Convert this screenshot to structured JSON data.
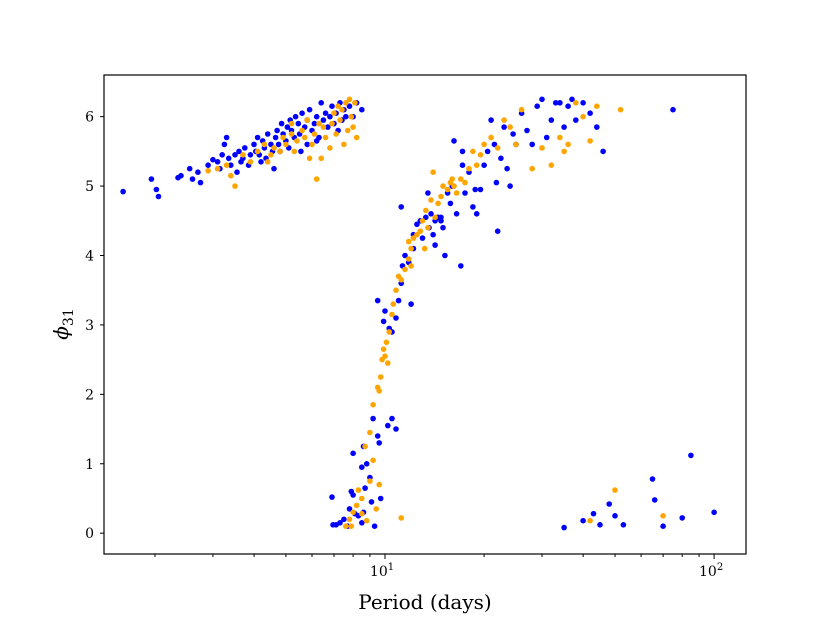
{
  "chart_data": {
    "type": "scatter",
    "xlabel": "Period (days)",
    "ylabel_main": "ϕ",
    "ylabel_sub": "31",
    "xscale": "log",
    "xlim": [
      1.4,
      125
    ],
    "ylim": [
      -0.3,
      6.6
    ],
    "x_ticks": [
      {
        "value": 10,
        "base": "10",
        "exp": "1"
      },
      {
        "value": 100,
        "base": "10",
        "exp": "2"
      }
    ],
    "y_ticks": [
      0,
      1,
      2,
      3,
      4,
      5,
      6
    ],
    "grid": false,
    "series": [
      {
        "color": "#0000ff",
        "points": [
          [
            1.6,
            4.92
          ],
          [
            1.95,
            5.1
          ],
          [
            2.02,
            4.95
          ],
          [
            2.05,
            4.85
          ],
          [
            2.35,
            5.12
          ],
          [
            2.4,
            5.15
          ],
          [
            2.55,
            5.25
          ],
          [
            2.6,
            5.1
          ],
          [
            2.7,
            5.2
          ],
          [
            2.75,
            5.05
          ],
          [
            2.9,
            5.3
          ],
          [
            3.0,
            5.38
          ],
          [
            3.1,
            5.35
          ],
          [
            3.15,
            5.25
          ],
          [
            3.2,
            5.45
          ],
          [
            3.25,
            5.6
          ],
          [
            3.3,
            5.7
          ],
          [
            3.35,
            5.4
          ],
          [
            3.4,
            5.3
          ],
          [
            3.5,
            5.45
          ],
          [
            3.55,
            5.2
          ],
          [
            3.6,
            5.5
          ],
          [
            3.65,
            5.35
          ],
          [
            3.7,
            5.4
          ],
          [
            3.75,
            5.55
          ],
          [
            3.85,
            5.3
          ],
          [
            3.9,
            5.45
          ],
          [
            4.0,
            5.6
          ],
          [
            4.05,
            5.5
          ],
          [
            4.1,
            5.7
          ],
          [
            4.15,
            5.45
          ],
          [
            4.2,
            5.35
          ],
          [
            4.25,
            5.65
          ],
          [
            4.3,
            5.55
          ],
          [
            4.35,
            5.4
          ],
          [
            4.4,
            5.75
          ],
          [
            4.5,
            5.6
          ],
          [
            4.55,
            5.5
          ],
          [
            4.6,
            5.25
          ],
          [
            4.65,
            5.7
          ],
          [
            4.7,
            5.8
          ],
          [
            4.75,
            5.6
          ],
          [
            4.8,
            5.5
          ],
          [
            4.85,
            5.9
          ],
          [
            4.9,
            5.75
          ],
          [
            5.0,
            5.65
          ],
          [
            5.05,
            5.85
          ],
          [
            5.1,
            5.55
          ],
          [
            5.15,
            5.95
          ],
          [
            5.2,
            5.8
          ],
          [
            5.3,
            5.7
          ],
          [
            5.35,
            6.0
          ],
          [
            5.45,
            5.9
          ],
          [
            5.5,
            5.75
          ],
          [
            5.6,
            6.05
          ],
          [
            5.7,
            5.85
          ],
          [
            5.8,
            5.95
          ],
          [
            5.9,
            6.1
          ],
          [
            6.0,
            5.8
          ],
          [
            6.1,
            5.9
          ],
          [
            6.2,
            6.0
          ],
          [
            6.3,
            5.7
          ],
          [
            6.4,
            6.2
          ],
          [
            6.5,
            5.95
          ],
          [
            6.6,
            6.05
          ],
          [
            6.7,
            5.85
          ],
          [
            6.8,
            6.0
          ],
          [
            6.9,
            6.15
          ],
          [
            7.0,
            5.9
          ],
          [
            7.1,
            6.05
          ],
          [
            7.2,
            5.8
          ],
          [
            7.3,
            6.2
          ],
          [
            7.4,
            5.95
          ],
          [
            7.5,
            6.1
          ],
          [
            7.6,
            6.0
          ],
          [
            7.8,
            6.15
          ],
          [
            8.0,
            6.0
          ],
          [
            8.2,
            6.2
          ],
          [
            8.5,
            6.1
          ],
          [
            6.2,
            5.65
          ],
          [
            5.8,
            5.6
          ],
          [
            5.55,
            5.5
          ],
          [
            6.9,
            0.52
          ],
          [
            6.95,
            0.12
          ],
          [
            7.1,
            0.12
          ],
          [
            7.3,
            0.15
          ],
          [
            7.5,
            0.2
          ],
          [
            7.7,
            0.1
          ],
          [
            7.8,
            0.35
          ],
          [
            7.9,
            0.6
          ],
          [
            8.0,
            0.55
          ],
          [
            8.1,
            0.28
          ],
          [
            8.3,
            0.25
          ],
          [
            8.5,
            0.15
          ],
          [
            8.6,
            0.3
          ],
          [
            8.7,
            0.65
          ],
          [
            8.5,
            0.95
          ],
          [
            8.6,
            1.25
          ],
          [
            8.8,
            1.0
          ],
          [
            9.0,
            0.8
          ],
          [
            9.1,
            0.45
          ],
          [
            9.3,
            0.1
          ],
          [
            9.5,
            1.4
          ],
          [
            9.6,
            1.3
          ],
          [
            9.2,
            1.65
          ],
          [
            9.7,
            0.5
          ],
          [
            8.0,
            1.15
          ],
          [
            10.2,
            1.55
          ],
          [
            10.5,
            1.65
          ],
          [
            10.8,
            1.5
          ],
          [
            9.5,
            3.35
          ],
          [
            9.9,
            3.05
          ],
          [
            10.0,
            3.2
          ],
          [
            10.3,
            2.95
          ],
          [
            10.5,
            2.9
          ],
          [
            10.8,
            3.1
          ],
          [
            11.0,
            3.35
          ],
          [
            11.2,
            3.6
          ],
          [
            11.3,
            3.85
          ],
          [
            11.5,
            4.0
          ],
          [
            11.8,
            3.9
          ],
          [
            12.0,
            3.3
          ],
          [
            12.2,
            4.1
          ],
          [
            12.5,
            4.45
          ],
          [
            12.8,
            4.5
          ],
          [
            13.0,
            4.25
          ],
          [
            13.3,
            4.55
          ],
          [
            13.6,
            4.4
          ],
          [
            13.8,
            4.6
          ],
          [
            14.0,
            4.3
          ],
          [
            14.2,
            4.15
          ],
          [
            14.5,
            4.55
          ],
          [
            14.8,
            4.5
          ],
          [
            15.0,
            4.4
          ],
          [
            15.2,
            4.0
          ],
          [
            15.5,
            4.9
          ],
          [
            15.8,
            4.75
          ],
          [
            16.0,
            5.0
          ],
          [
            16.5,
            4.6
          ],
          [
            17.0,
            3.85
          ],
          [
            17.2,
            5.3
          ],
          [
            17.5,
            4.9
          ],
          [
            18.0,
            5.2
          ],
          [
            18.5,
            4.7
          ],
          [
            19.0,
            4.6
          ],
          [
            19.5,
            4.95
          ],
          [
            20.0,
            5.3
          ],
          [
            20.5,
            5.5
          ],
          [
            21.0,
            5.95
          ],
          [
            21.5,
            5.6
          ],
          [
            22.0,
            4.35
          ],
          [
            22.5,
            5.4
          ],
          [
            23.0,
            5.85
          ],
          [
            23.5,
            5.25
          ],
          [
            24.0,
            5.0
          ],
          [
            24.5,
            5.75
          ],
          [
            25.0,
            5.6
          ],
          [
            26.0,
            6.05
          ],
          [
            27.0,
            5.8
          ],
          [
            28.0,
            5.6
          ],
          [
            29.0,
            6.15
          ],
          [
            30.0,
            6.25
          ],
          [
            31.0,
            5.7
          ],
          [
            32.0,
            5.95
          ],
          [
            33.0,
            6.2
          ],
          [
            34.0,
            6.2
          ],
          [
            35.0,
            5.85
          ],
          [
            36.0,
            6.15
          ],
          [
            37.0,
            6.25
          ],
          [
            38.0,
            5.95
          ],
          [
            40.0,
            6.2
          ],
          [
            42.0,
            6.05
          ],
          [
            44.0,
            5.85
          ],
          [
            46.0,
            5.5
          ],
          [
            11.2,
            4.7
          ],
          [
            13.5,
            4.9
          ],
          [
            14.2,
            4.5
          ],
          [
            16.2,
            5.65
          ],
          [
            17.2,
            5.5
          ],
          [
            21.8,
            5.05
          ],
          [
            18.8,
            4.95
          ],
          [
            12.2,
            4.3
          ],
          [
            14.8,
            4.55
          ],
          [
            35.0,
            0.08
          ],
          [
            40.0,
            0.18
          ],
          [
            43.0,
            0.28
          ],
          [
            45.0,
            0.12
          ],
          [
            48.0,
            0.42
          ],
          [
            50.0,
            0.25
          ],
          [
            53.0,
            0.12
          ],
          [
            65.0,
            0.78
          ],
          [
            66.0,
            0.48
          ],
          [
            70.0,
            0.1
          ],
          [
            75.0,
            6.1
          ],
          [
            80.0,
            0.22
          ],
          [
            85.0,
            1.12
          ],
          [
            100.0,
            0.3
          ]
        ]
      },
      {
        "color": "#ffa500",
        "points": [
          [
            2.9,
            5.22
          ],
          [
            3.1,
            5.25
          ],
          [
            3.3,
            5.3
          ],
          [
            3.4,
            5.15
          ],
          [
            3.5,
            5.0
          ],
          [
            3.7,
            5.45
          ],
          [
            3.9,
            5.35
          ],
          [
            4.1,
            5.5
          ],
          [
            4.3,
            5.6
          ],
          [
            4.5,
            5.45
          ],
          [
            4.6,
            5.55
          ],
          [
            4.8,
            5.5
          ],
          [
            4.9,
            5.7
          ],
          [
            5.0,
            5.6
          ],
          [
            5.2,
            5.75
          ],
          [
            5.3,
            5.5
          ],
          [
            5.4,
            5.65
          ],
          [
            5.6,
            5.8
          ],
          [
            5.7,
            5.7
          ],
          [
            5.9,
            5.4
          ],
          [
            6.0,
            5.6
          ],
          [
            6.1,
            5.75
          ],
          [
            6.2,
            5.1
          ],
          [
            6.3,
            5.9
          ],
          [
            6.5,
            5.85
          ],
          [
            6.6,
            5.7
          ],
          [
            6.8,
            5.55
          ],
          [
            6.9,
            5.9
          ],
          [
            7.0,
            6.05
          ],
          [
            7.1,
            5.75
          ],
          [
            7.2,
            6.15
          ],
          [
            7.3,
            5.95
          ],
          [
            7.5,
            5.6
          ],
          [
            7.6,
            6.2
          ],
          [
            7.7,
            5.8
          ],
          [
            7.8,
            6.25
          ],
          [
            7.9,
            6.0
          ],
          [
            8.0,
            5.85
          ],
          [
            8.1,
            6.2
          ],
          [
            8.2,
            5.7
          ],
          [
            5.8,
            5.95
          ],
          [
            5.2,
            5.9
          ],
          [
            4.4,
            5.35
          ],
          [
            6.4,
            5.4
          ],
          [
            7.4,
            6.1
          ],
          [
            7.6,
            0.1
          ],
          [
            7.8,
            0.2
          ],
          [
            7.9,
            0.1
          ],
          [
            8.0,
            0.3
          ],
          [
            8.2,
            0.4
          ],
          [
            8.3,
            0.62
          ],
          [
            8.5,
            0.5
          ],
          [
            8.8,
            0.18
          ],
          [
            9.0,
            0.75
          ],
          [
            9.2,
            1.05
          ],
          [
            9.4,
            0.35
          ],
          [
            9.6,
            0.7
          ],
          [
            8.5,
            0.28
          ],
          [
            11.2,
            0.22
          ],
          [
            8.7,
            1.25
          ],
          [
            9.0,
            1.45
          ],
          [
            9.2,
            1.85
          ],
          [
            9.5,
            2.1
          ],
          [
            9.6,
            2.05
          ],
          [
            9.7,
            2.25
          ],
          [
            9.8,
            2.5
          ],
          [
            9.9,
            2.65
          ],
          [
            10.0,
            2.55
          ],
          [
            10.1,
            2.75
          ],
          [
            10.2,
            2.45
          ],
          [
            10.3,
            2.9
          ],
          [
            10.5,
            3.15
          ],
          [
            10.6,
            3.3
          ],
          [
            10.8,
            3.5
          ],
          [
            11.0,
            3.7
          ],
          [
            11.2,
            3.65
          ],
          [
            11.5,
            3.8
          ],
          [
            11.8,
            3.95
          ],
          [
            12.0,
            4.1
          ],
          [
            12.2,
            4.25
          ],
          [
            12.5,
            4.3
          ],
          [
            12.8,
            4.35
          ],
          [
            13.0,
            4.5
          ],
          [
            13.3,
            4.65
          ],
          [
            13.5,
            4.4
          ],
          [
            13.8,
            4.8
          ],
          [
            14.0,
            5.2
          ],
          [
            14.5,
            4.75
          ],
          [
            14.8,
            4.85
          ],
          [
            15.0,
            5.0
          ],
          [
            15.5,
            4.95
          ],
          [
            15.8,
            5.05
          ],
          [
            16.0,
            5.1
          ],
          [
            16.5,
            4.9
          ],
          [
            17.0,
            5.1
          ],
          [
            17.5,
            5.05
          ],
          [
            18.0,
            5.25
          ],
          [
            18.5,
            5.5
          ],
          [
            19.0,
            5.3
          ],
          [
            19.5,
            5.45
          ],
          [
            20.0,
            5.6
          ],
          [
            21.0,
            5.7
          ],
          [
            22.0,
            5.55
          ],
          [
            23.0,
            5.95
          ],
          [
            24.0,
            5.85
          ],
          [
            25.0,
            5.6
          ],
          [
            26.0,
            6.1
          ],
          [
            28.0,
            5.25
          ],
          [
            30.0,
            5.55
          ],
          [
            32.0,
            5.3
          ],
          [
            34.0,
            5.7
          ],
          [
            35.0,
            5.5
          ],
          [
            36.0,
            5.6
          ],
          [
            38.0,
            6.2
          ],
          [
            40.0,
            6.0
          ],
          [
            42.0,
            5.65
          ],
          [
            44.0,
            6.15
          ],
          [
            52.0,
            6.1
          ],
          [
            12.0,
            3.85
          ],
          [
            14.2,
            4.55
          ],
          [
            16.2,
            5.0
          ],
          [
            13.2,
            4.1
          ],
          [
            11.8,
            4.2
          ],
          [
            42.0,
            0.18
          ],
          [
            50.0,
            0.62
          ],
          [
            70.0,
            0.25
          ]
        ]
      }
    ]
  }
}
